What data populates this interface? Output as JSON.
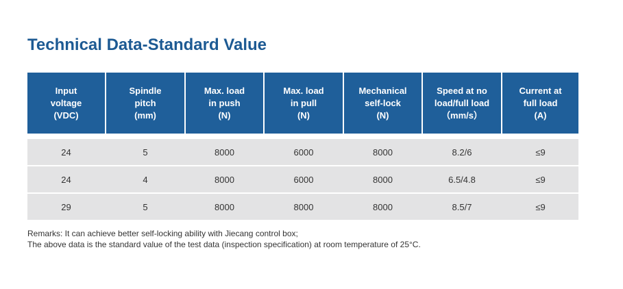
{
  "title": "Technical Data-Standard Value",
  "table": {
    "headers": [
      [
        "Input",
        "voltage",
        "(VDC)"
      ],
      [
        "Spindle",
        "pitch",
        "(mm)"
      ],
      [
        "Max. load",
        "in push",
        "(N)"
      ],
      [
        "Max. load",
        "in pull",
        "(N)"
      ],
      [
        "Mechanical",
        "self-lock",
        "(N)"
      ],
      [
        "Speed at no",
        "load/full load",
        "（mm/s）"
      ],
      [
        "Current at",
        "full load",
        "(A)"
      ]
    ],
    "rows": [
      [
        "24",
        "5",
        "8000",
        "6000",
        "8000",
        "8.2/6",
        "≤9"
      ],
      [
        "24",
        "4",
        "8000",
        "6000",
        "8000",
        "6.5/4.8",
        "≤9"
      ],
      [
        "29",
        "5",
        "8000",
        "8000",
        "8000",
        "8.5/7",
        "≤9"
      ]
    ]
  },
  "remarks": [
    "Remarks: It can achieve better self-locking ability with Jiecang control box;",
    "The above data is the standard value of the test data (inspection specification) at room temperature of 25°C."
  ],
  "colors": {
    "title": "#1d5a93",
    "header_bg": "#1f5f9a",
    "row_bg": "#e3e3e4"
  }
}
